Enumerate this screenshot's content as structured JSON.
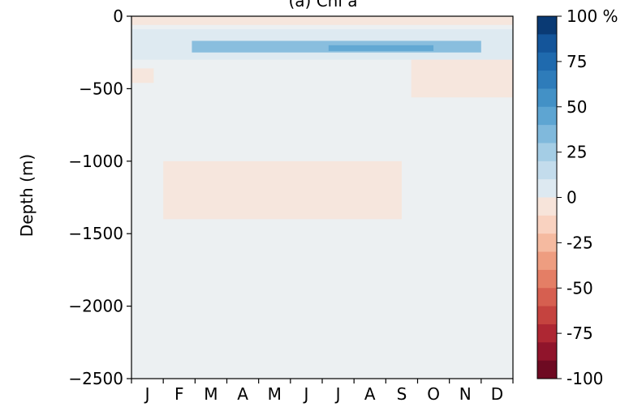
{
  "chart_data": {
    "type": "heatmap",
    "title": "(a) Chl a",
    "ylabel": "Depth (m)",
    "xlabel": "",
    "x_categories": [
      "J",
      "F",
      "M",
      "A",
      "M",
      "J",
      "J",
      "A",
      "S",
      "O",
      "N",
      "D"
    ],
    "yticks": [
      0,
      -500,
      -1000,
      -1500,
      -2000,
      -2500
    ],
    "ylim": [
      -2500,
      0
    ],
    "colorbar": {
      "ticks": [
        "100 %",
        "75",
        "50",
        "25",
        "0",
        "-25",
        "-50",
        "-75",
        "-100"
      ],
      "tick_values": [
        100,
        75,
        50,
        25,
        0,
        -25,
        -50,
        -75,
        -100
      ],
      "range": [
        -100,
        100
      ],
      "levels": 20,
      "colors_high_to_low": [
        "#0a3a74",
        "#14559a",
        "#1f6aae",
        "#2e7cba",
        "#4391c6",
        "#5ea5d2",
        "#80b9dc",
        "#a4cde5",
        "#c3dcec",
        "#dde9f1",
        "#f7e4da",
        "#f9d2c0",
        "#f5baa0",
        "#ee9d80",
        "#e47e65",
        "#d65f50",
        "#c5433f",
        "#ae2733",
        "#90142b",
        "#6e0a22"
      ]
    },
    "background_color": "#ecf0f2",
    "features": [
      {
        "desc": "positive band near surface",
        "depth_from": -90,
        "depth_to": -300,
        "months": [
          0.0,
          12.0
        ],
        "value": 10
      },
      {
        "desc": "stronger positive core",
        "depth_from": -170,
        "depth_to": -250,
        "months": [
          1.9,
          11.0
        ],
        "value": 35
      },
      {
        "desc": "strongest core",
        "depth_from": -200,
        "depth_to": -240,
        "months": [
          6.2,
          9.5
        ],
        "value": 50
      },
      {
        "desc": "surface negative",
        "depth_from": 0,
        "depth_to": -60,
        "months": [
          0.0,
          12.0
        ],
        "value": -5
      },
      {
        "desc": "negative at ~400m early",
        "depth_from": -360,
        "depth_to": -460,
        "months": [
          0.0,
          0.7
        ],
        "value": -8
      },
      {
        "desc": "negative late-year ~400m",
        "depth_from": -300,
        "depth_to": -560,
        "months": [
          8.8,
          12.0
        ],
        "value": -6
      },
      {
        "desc": "negative patches ~1000-1400m",
        "depth_from": -1000,
        "depth_to": -1400,
        "months": [
          1.0,
          8.5
        ],
        "value": -5
      }
    ]
  }
}
